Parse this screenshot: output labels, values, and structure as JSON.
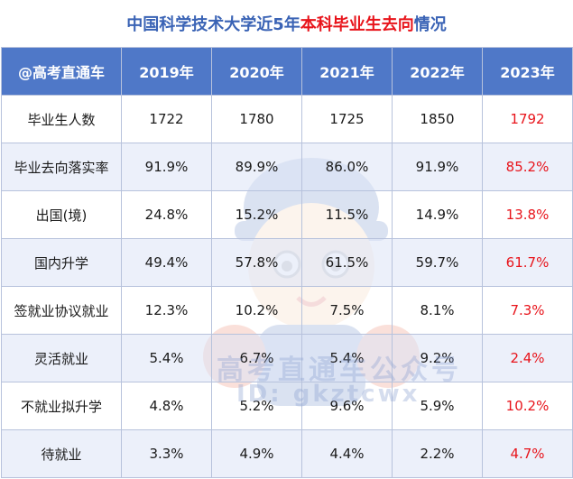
{
  "title": {
    "part1": "中国科学技术大学近5年",
    "part2": "本科毕业生去向",
    "part3": "情况"
  },
  "table": {
    "headers": [
      "@高考直通车",
      "2019年",
      "2020年",
      "2021年",
      "2022年",
      "2023年"
    ],
    "rows": [
      [
        "毕业生人数",
        "1722",
        "1780",
        "1725",
        "1850",
        "1792"
      ],
      [
        "毕业去向落实率",
        "91.9%",
        "89.9%",
        "86.0%",
        "91.9%",
        "85.2%"
      ],
      [
        "出国(境)",
        "24.8%",
        "15.2%",
        "11.5%",
        "14.9%",
        "13.8%"
      ],
      [
        "国内升学",
        "49.4%",
        "57.8%",
        "61.5%",
        "59.7%",
        "61.7%"
      ],
      [
        "签就业协议就业",
        "12.3%",
        "10.2%",
        "7.5%",
        "8.1%",
        "7.3%"
      ],
      [
        "灵活就业",
        "5.4%",
        "6.7%",
        "5.4%",
        "9.2%",
        "2.4%"
      ],
      [
        "不就业拟升学",
        "4.8%",
        "5.2%",
        "9.6%",
        "5.9%",
        "10.2%"
      ],
      [
        "待就业",
        "3.3%",
        "4.9%",
        "4.4%",
        "2.2%",
        "4.7%"
      ]
    ]
  },
  "watermark": {
    "name": "高考直通车公众号",
    "id": "ID: gkztcwx",
    "badge": "高"
  },
  "colors": {
    "title_blue": "#3a63b5",
    "title_red": "#e8141b",
    "header_bg": "#4f78c8",
    "highlight_red": "#e8141b",
    "stripe": "#dce4f5"
  }
}
